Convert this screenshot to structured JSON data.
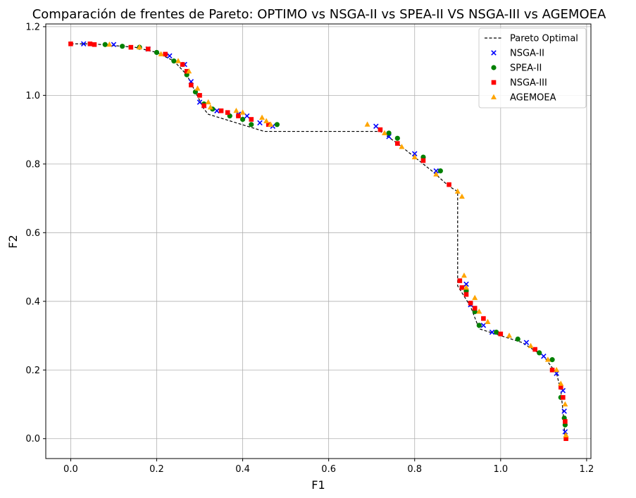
{
  "chart_data": {
    "type": "scatter",
    "title": "Comparación de frentes de Pareto: OPTIMO vs NSGA-II vs SPEA-II VS NSGA-III vs AGEMOEA",
    "xlabel": "F1",
    "ylabel": "F2",
    "xlim": [
      -0.058,
      1.21
    ],
    "ylim": [
      -0.058,
      1.208
    ],
    "xticks": [
      0.0,
      0.2,
      0.4,
      0.6,
      0.8,
      1.0,
      1.2
    ],
    "yticks": [
      0.0,
      0.2,
      0.4,
      0.6,
      0.8,
      1.0,
      1.2
    ],
    "xtick_labels": [
      "0.0",
      "0.2",
      "0.4",
      "0.6",
      "0.8",
      "1.0",
      "1.2"
    ],
    "ytick_labels": [
      "0.0",
      "0.2",
      "0.4",
      "0.6",
      "0.8",
      "1.0",
      "1.2"
    ],
    "grid": true,
    "legend_position": "top-right",
    "series": [
      {
        "name": "Pareto Optimal",
        "kind": "line",
        "style": "dashed",
        "color": "#000000",
        "x": [
          0.0,
          0.05,
          0.1,
          0.15,
          0.2,
          0.24,
          0.27,
          0.29,
          0.31,
          0.32,
          0.45,
          0.5,
          0.6,
          0.7,
          0.72,
          0.76,
          0.8,
          0.84,
          0.88,
          0.9,
          0.9,
          0.9,
          0.93,
          0.95,
          1.0,
          1.05,
          1.1,
          1.13,
          1.14,
          1.145,
          1.15
        ],
        "y": [
          1.15,
          1.15,
          1.145,
          1.14,
          1.125,
          1.1,
          1.06,
          1.01,
          0.96,
          0.945,
          0.895,
          0.895,
          0.895,
          0.895,
          0.895,
          0.86,
          0.82,
          0.78,
          0.735,
          0.72,
          0.6,
          0.445,
          0.385,
          0.32,
          0.3,
          0.28,
          0.24,
          0.19,
          0.14,
          0.08,
          0.0
        ]
      },
      {
        "name": "NSGA-II",
        "kind": "scatter",
        "marker": "x",
        "color": "#0000ff",
        "x": [
          0.03,
          0.1,
          0.18,
          0.23,
          0.265,
          0.28,
          0.3,
          0.31,
          0.34,
          0.39,
          0.41,
          0.44,
          0.47,
          0.71,
          0.74,
          0.8,
          0.85,
          0.92,
          0.93,
          0.96,
          0.98,
          1.06,
          1.1,
          1.13,
          1.145,
          1.148,
          1.15
        ],
        "y": [
          1.15,
          1.148,
          1.135,
          1.115,
          1.09,
          1.04,
          0.98,
          0.97,
          0.955,
          0.945,
          0.94,
          0.92,
          0.91,
          0.91,
          0.88,
          0.83,
          0.78,
          0.45,
          0.39,
          0.33,
          0.31,
          0.28,
          0.24,
          0.19,
          0.14,
          0.08,
          0.02
        ]
      },
      {
        "name": "SPEA-II",
        "kind": "scatter",
        "marker": "o",
        "color": "#008000",
        "x": [
          0.08,
          0.12,
          0.16,
          0.2,
          0.24,
          0.27,
          0.29,
          0.31,
          0.33,
          0.37,
          0.4,
          0.42,
          0.48,
          0.74,
          0.76,
          0.82,
          0.86,
          0.94,
          0.95,
          0.92,
          0.99,
          1.04,
          1.09,
          1.12,
          1.14,
          1.148,
          1.15
        ],
        "y": [
          1.148,
          1.143,
          1.14,
          1.125,
          1.1,
          1.06,
          1.01,
          0.975,
          0.96,
          0.94,
          0.93,
          0.915,
          0.915,
          0.89,
          0.875,
          0.82,
          0.78,
          0.37,
          0.33,
          0.43,
          0.31,
          0.29,
          0.25,
          0.23,
          0.12,
          0.06,
          0.04
        ]
      },
      {
        "name": "NSGA-III",
        "kind": "scatter",
        "marker": "s",
        "color": "#ff0000",
        "x": [
          0.0,
          0.045,
          0.055,
          0.14,
          0.18,
          0.22,
          0.26,
          0.27,
          0.28,
          0.3,
          0.31,
          0.35,
          0.365,
          0.39,
          0.42,
          0.46,
          0.72,
          0.76,
          0.82,
          0.88,
          0.905,
          0.91,
          0.92,
          0.93,
          0.94,
          0.96,
          1.0,
          1.08,
          1.12,
          1.14,
          1.145,
          1.15,
          1.152
        ],
        "y": [
          1.15,
          1.15,
          1.148,
          1.14,
          1.135,
          1.12,
          1.09,
          1.07,
          1.03,
          1.0,
          0.97,
          0.955,
          0.95,
          0.94,
          0.93,
          0.915,
          0.9,
          0.86,
          0.81,
          0.74,
          0.46,
          0.44,
          0.42,
          0.395,
          0.38,
          0.35,
          0.305,
          0.26,
          0.2,
          0.15,
          0.12,
          0.05,
          0.0
        ]
      },
      {
        "name": "AGEMOEA",
        "kind": "scatter",
        "marker": "^",
        "color": "#ffa500",
        "x": [
          0.09,
          0.16,
          0.21,
          0.25,
          0.275,
          0.295,
          0.32,
          0.325,
          0.385,
          0.4,
          0.445,
          0.455,
          0.465,
          0.69,
          0.73,
          0.77,
          0.8,
          0.85,
          0.9,
          0.91,
          0.915,
          0.92,
          0.94,
          0.95,
          0.97,
          1.02,
          1.07,
          1.11,
          1.13,
          1.14,
          1.15,
          1.152
        ],
        "y": [
          1.148,
          1.14,
          1.12,
          1.1,
          1.07,
          1.02,
          0.98,
          0.965,
          0.955,
          0.95,
          0.935,
          0.925,
          0.915,
          0.915,
          0.89,
          0.85,
          0.82,
          0.77,
          0.72,
          0.705,
          0.475,
          0.44,
          0.41,
          0.37,
          0.34,
          0.3,
          0.27,
          0.23,
          0.2,
          0.16,
          0.1,
          0.01
        ]
      }
    ]
  }
}
